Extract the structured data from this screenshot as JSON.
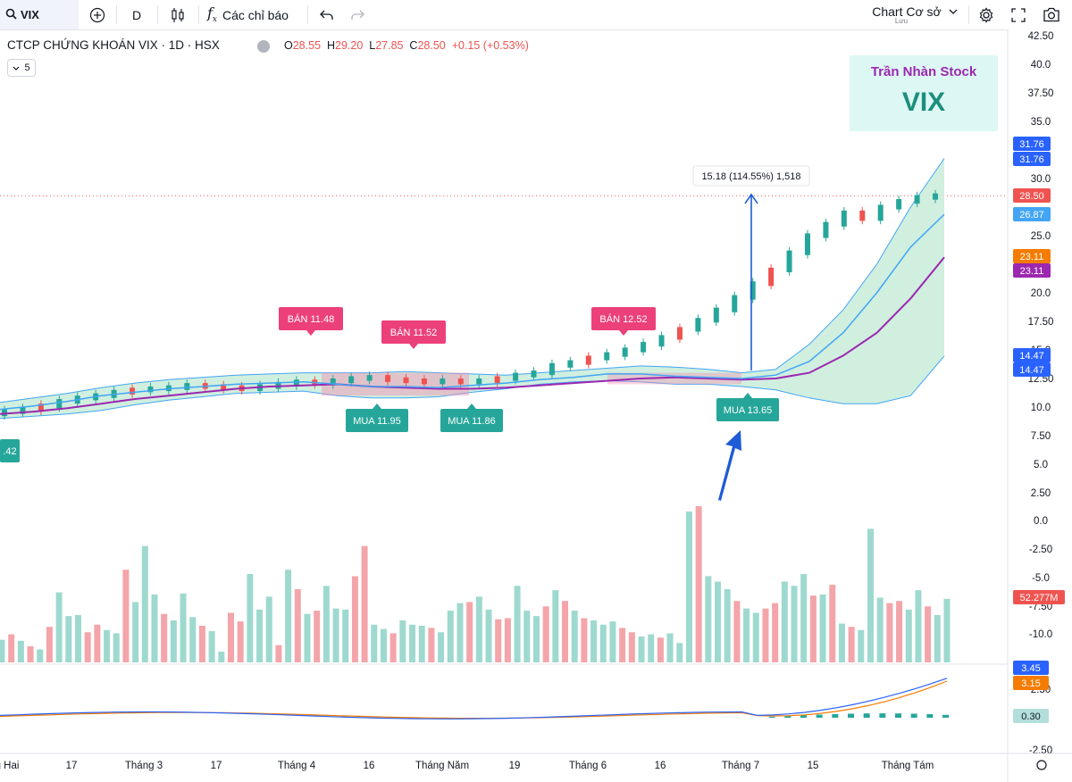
{
  "toolbar": {
    "symbol": "VIX",
    "interval": "D",
    "indicators_label": "Các chỉ báo",
    "layout_name": "Chart Cơ sở",
    "layout_status": "Lưu"
  },
  "header": {
    "title": "CTCP CHỨNG KHOÁN VIX · 1D · HSX",
    "ohlc": {
      "o_label": "O",
      "o": "28.55",
      "h_label": "H",
      "h": "29.20",
      "l_label": "L",
      "l": "27.85",
      "c_label": "C",
      "c": "28.50",
      "change": "+0.15 (+0.53%)"
    },
    "collapsed_count": "5"
  },
  "watermark": {
    "line1": "Trần Nhàn Stock",
    "line2": "VIX"
  },
  "colors": {
    "up": "#26a69a",
    "down": "#ef5350",
    "sell_label": "#ec407a",
    "buy_label": "#26a69a",
    "ma_slow": "#9c27b0",
    "ma_fast": "#42a5f5",
    "band_fill": "#c8ecd9",
    "arrow": "#1e5bd6"
  },
  "chart_data": [
    {
      "type": "candlestick",
      "title": "CTCP CHỨNG KHOÁN VIX · 1D · HSX",
      "y_axis": {
        "ticks": [
          "42.50",
          "40.0",
          "37.50",
          "35.0",
          "30.0",
          "25.0",
          "20.0",
          "17.50",
          "15.0",
          "12.50",
          "10.0",
          "7.50",
          "5.0",
          "2.50"
        ],
        "range": [
          2.0,
          43.0
        ]
      },
      "x_axis": {
        "ticks": [
          "g Hai",
          "17",
          "Tháng 3",
          "17",
          "Tháng 4",
          "16",
          "Tháng Năm",
          "19",
          "Tháng 6",
          "16",
          "Tháng 7",
          "15",
          "Tháng Tám"
        ]
      },
      "last_price": 28.5,
      "price_labels": [
        {
          "value": "31.76",
          "color": "#2962ff"
        },
        {
          "value": "31.76",
          "color": "#2962ff"
        },
        {
          "value": "28.50",
          "color": "#ef5350"
        },
        {
          "value": "26.87",
          "color": "#42a5f5"
        },
        {
          "value": "23.11",
          "color": "#f57c00"
        },
        {
          "value": "23.11",
          "color": "#9c27b0"
        },
        {
          "value": "14.47",
          "color": "#2962ff"
        },
        {
          "value": "14.47",
          "color": "#2962ff"
        }
      ],
      "left_edge_label": ".42",
      "annotations": [
        {
          "text": "BÁN 11.48",
          "type": "sell"
        },
        {
          "text": "BÁN 11.52",
          "type": "sell"
        },
        {
          "text": "BÁN 12.52",
          "type": "sell"
        },
        {
          "text": "MUA 11.95",
          "type": "buy"
        },
        {
          "text": "MUA 11.86",
          "type": "buy"
        },
        {
          "text": "MUA 13.65",
          "type": "buy"
        }
      ],
      "measure_label": "15.18 (114.55%) 1,518",
      "series": [
        {
          "name": "",
          "kind": "ma",
          "values": [
            9.4,
            9.6,
            9.9,
            10.3,
            10.7,
            11.0,
            11.3,
            11.6,
            11.8,
            11.9,
            12.0,
            11.8,
            11.7,
            11.6,
            11.6,
            11.7,
            11.9,
            12.1,
            12.3,
            12.5,
            12.6,
            12.5,
            12.4,
            12.5,
            13.0,
            14.5,
            16.5,
            19.5,
            23.11
          ]
        },
        {
          "name": "",
          "kind": "ma_fast",
          "values": [
            9.8,
            10.1,
            10.5,
            11.0,
            11.3,
            11.6,
            11.8,
            12.0,
            12.1,
            12.2,
            12.0,
            11.8,
            11.8,
            11.7,
            11.9,
            12.1,
            12.4,
            12.6,
            12.9,
            12.9,
            12.7,
            12.6,
            12.5,
            12.8,
            14.0,
            16.5,
            20.0,
            24.0,
            26.87
          ]
        },
        {
          "name": "",
          "kind": "band_upper",
          "values": [
            10.4,
            10.8,
            11.2,
            11.7,
            12.1,
            12.4,
            12.6,
            12.8,
            12.9,
            13.0,
            13.0,
            13.0,
            13.1,
            13.0,
            12.9,
            12.8,
            13.0,
            13.2,
            13.4,
            13.6,
            13.5,
            13.3,
            13.0,
            13.3,
            15.5,
            18.5,
            22.5,
            27.5,
            31.76
          ]
        },
        {
          "name": "",
          "kind": "band_lower",
          "values": [
            9.0,
            9.2,
            9.4,
            9.7,
            10.2,
            10.6,
            10.9,
            11.2,
            11.3,
            11.4,
            11.0,
            10.8,
            10.8,
            10.9,
            11.3,
            11.6,
            12.0,
            12.2,
            12.3,
            12.2,
            12.0,
            12.0,
            11.8,
            11.5,
            10.8,
            10.3,
            10.3,
            11.0,
            14.47
          ]
        }
      ],
      "candles_close": [
        9.6,
        9.8,
        10.1,
        10.5,
        10.8,
        11.0,
        11.3,
        11.5,
        11.6,
        11.7,
        11.9,
        11.8,
        11.7,
        11.6,
        11.8,
        12.0,
        12.2,
        12.1,
        12.3,
        12.5,
        12.6,
        12.4,
        12.3,
        12.2,
        12.3,
        12.2,
        12.3,
        12.5,
        12.8,
        13.0,
        13.65,
        13.9,
        14.3,
        14.6,
        15.0,
        15.5,
        16.1,
        16.8,
        17.6,
        18.5,
        19.6,
        20.8,
        22.0,
        23.5,
        25.0,
        26.0,
        27.0,
        26.5,
        27.5,
        28.0,
        28.35,
        28.5
      ]
    },
    {
      "type": "bar",
      "title": "Volume",
      "y_axis": {
        "ticks": [
          "0.0",
          "-2.50",
          "-5.0",
          "-7.50",
          "-10.0"
        ]
      },
      "last_label": "52.277M",
      "values": [
        2.1,
        2.6,
        2.0,
        1.5,
        1.2,
        3.3,
        6.5,
        4.3,
        4.4,
        2.8,
        3.5,
        3.0,
        2.7,
        8.6,
        5.6,
        10.8,
        6.3,
        4.5,
        3.9,
        6.4,
        4.2,
        3.4,
        2.9,
        1.0,
        4.6,
        3.8,
        8.2,
        4.9,
        6.1,
        1.6,
        8.6,
        6.8,
        4.5,
        4.8,
        7.1,
        5.0,
        4.9,
        8.0,
        10.8,
        3.5,
        3.1,
        2.7,
        3.9,
        3.5,
        3.4,
        3.2,
        2.8,
        4.8,
        5.5,
        5.6,
        6.1,
        4.9,
        4.0,
        4.1,
        7.1,
        4.8,
        4.3,
        5.2,
        6.7,
        5.7,
        4.8,
        4.1,
        3.9,
        3.5,
        3.8,
        3.2,
        2.8,
        2.4,
        2.6,
        2.3,
        2.7,
        1.8,
        14.0,
        14.5,
        8.0,
        7.5,
        6.8,
        5.7,
        5.0,
        4.6,
        5.0,
        5.5,
        7.5,
        7.1,
        8.2,
        6.2,
        6.3,
        7.2,
        3.6,
        3.3,
        3.0,
        12.4,
        6.0,
        5.5,
        5.7,
        4.9,
        6.7,
        5.2,
        4.4,
        5.9
      ]
    },
    {
      "type": "line",
      "title": "MACD",
      "y_axis": {
        "ticks": [
          "2.50",
          "-2.50"
        ]
      },
      "labels": [
        {
          "value": "3.45",
          "color": "#2962ff"
        },
        {
          "value": "3.15",
          "color": "#f57c00"
        },
        {
          "value": "0.30",
          "color": "#26a69a"
        }
      ]
    }
  ]
}
